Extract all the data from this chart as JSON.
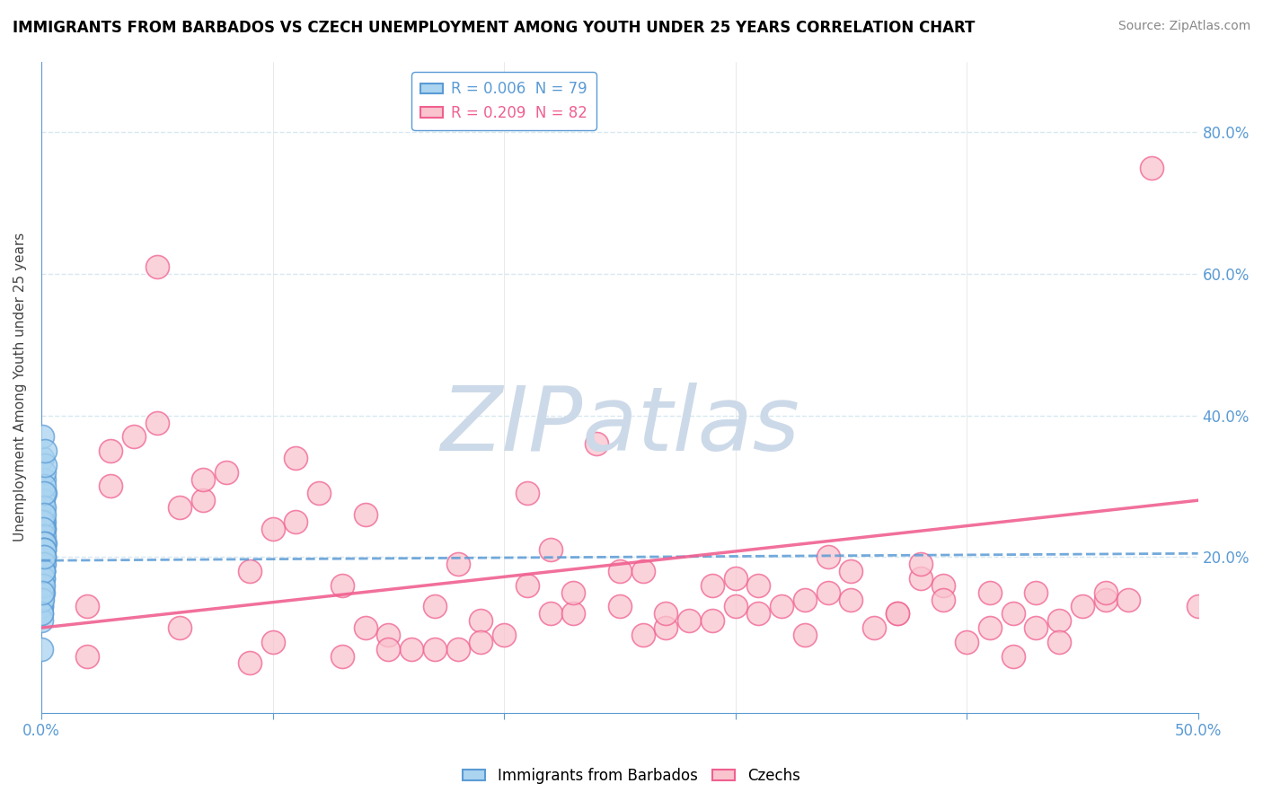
{
  "title": "IMMIGRANTS FROM BARBADOS VS CZECH UNEMPLOYMENT AMONG YOUTH UNDER 25 YEARS CORRELATION CHART",
  "source": "Source: ZipAtlas.com",
  "ylabel": "Unemployment Among Youth under 25 years",
  "xlim": [
    0.0,
    0.5
  ],
  "ylim": [
    -0.02,
    0.9
  ],
  "legend_entries": [
    {
      "label": "R = 0.006  N = 79",
      "R": 0.006,
      "N": 79
    },
    {
      "label": "R = 0.209  N = 82",
      "R": 0.209,
      "N": 82
    }
  ],
  "blue_scatter_x": [
    0.0005,
    0.001,
    0.0008,
    0.0012,
    0.0003,
    0.0015,
    0.001,
    0.0007,
    0.0004,
    0.0009,
    0.0011,
    0.0006,
    0.0013,
    0.0002,
    0.0014,
    0.0008,
    0.001,
    0.0005,
    0.0016,
    0.0007,
    0.0009,
    0.0003,
    0.0011,
    0.0006,
    0.0013,
    0.0004,
    0.0008,
    0.0002,
    0.001,
    0.0007,
    0.0012,
    0.0005,
    0.0009,
    0.0003,
    0.0014,
    0.0011,
    0.0006,
    0.0001,
    0.0008,
    0.0004,
    0.001,
    0.0007,
    0.0002,
    0.0012,
    0.0005,
    0.0001,
    0.0009,
    0.0006,
    0.0003,
    0.0008,
    0.0004,
    0.001,
    0.0007,
    0.0011,
    0.0002,
    0.0006,
    0.0009,
    0.0003,
    0.0008,
    0.001,
    0.0001,
    0.0005,
    0.0011,
    0.0002,
    0.0007,
    0.0004,
    5e-05,
    0.0006,
    0.0009,
    0.0002,
    0.0007,
    3e-05,
    0.0008,
    0.0005,
    0.0002,
    0.0009,
    0.0011,
    0.0004,
    1e-05
  ],
  "blue_scatter_y": [
    0.34,
    0.31,
    0.27,
    0.24,
    0.37,
    0.29,
    0.32,
    0.26,
    0.21,
    0.28,
    0.3,
    0.23,
    0.25,
    0.2,
    0.33,
    0.22,
    0.24,
    0.19,
    0.35,
    0.25,
    0.22,
    0.18,
    0.27,
    0.17,
    0.29,
    0.25,
    0.2,
    0.21,
    0.26,
    0.19,
    0.23,
    0.22,
    0.24,
    0.18,
    0.22,
    0.21,
    0.2,
    0.16,
    0.21,
    0.18,
    0.2,
    0.19,
    0.17,
    0.22,
    0.19,
    0.13,
    0.21,
    0.2,
    0.16,
    0.19,
    0.15,
    0.21,
    0.18,
    0.2,
    0.14,
    0.19,
    0.2,
    0.15,
    0.18,
    0.21,
    0.13,
    0.17,
    0.19,
    0.14,
    0.18,
    0.16,
    0.12,
    0.15,
    0.18,
    0.14,
    0.17,
    0.11,
    0.16,
    0.14,
    0.12,
    0.18,
    0.2,
    0.15,
    0.07
  ],
  "pink_scatter_x": [
    0.02,
    0.06,
    0.1,
    0.14,
    0.18,
    0.22,
    0.26,
    0.3,
    0.34,
    0.38,
    0.42,
    0.46,
    0.05,
    0.09,
    0.13,
    0.17,
    0.21,
    0.25,
    0.29,
    0.33,
    0.37,
    0.41,
    0.45,
    0.03,
    0.07,
    0.11,
    0.15,
    0.19,
    0.23,
    0.27,
    0.31,
    0.35,
    0.39,
    0.43,
    0.04,
    0.08,
    0.12,
    0.16,
    0.2,
    0.24,
    0.28,
    0.32,
    0.36,
    0.4,
    0.44,
    0.02,
    0.06,
    0.1,
    0.14,
    0.18,
    0.22,
    0.26,
    0.3,
    0.34,
    0.38,
    0.42,
    0.46,
    0.03,
    0.07,
    0.11,
    0.15,
    0.19,
    0.23,
    0.27,
    0.31,
    0.35,
    0.39,
    0.43,
    0.05,
    0.09,
    0.13,
    0.17,
    0.21,
    0.25,
    0.29,
    0.33,
    0.37,
    0.41,
    0.48,
    0.5,
    0.44,
    0.47
  ],
  "pink_scatter_y": [
    0.13,
    0.1,
    0.08,
    0.1,
    0.07,
    0.12,
    0.09,
    0.13,
    0.15,
    0.17,
    0.12,
    0.14,
    0.61,
    0.18,
    0.16,
    0.13,
    0.29,
    0.18,
    0.16,
    0.14,
    0.12,
    0.15,
    0.13,
    0.35,
    0.28,
    0.34,
    0.09,
    0.11,
    0.12,
    0.1,
    0.12,
    0.14,
    0.16,
    0.15,
    0.37,
    0.32,
    0.29,
    0.07,
    0.09,
    0.36,
    0.11,
    0.13,
    0.1,
    0.08,
    0.11,
    0.06,
    0.27,
    0.24,
    0.26,
    0.19,
    0.21,
    0.18,
    0.17,
    0.2,
    0.19,
    0.06,
    0.15,
    0.3,
    0.31,
    0.25,
    0.07,
    0.08,
    0.15,
    0.12,
    0.16,
    0.18,
    0.14,
    0.1,
    0.39,
    0.05,
    0.06,
    0.07,
    0.16,
    0.13,
    0.11,
    0.09,
    0.12,
    0.1,
    0.75,
    0.13,
    0.08,
    0.14
  ],
  "blue_color": "#aad4f0",
  "pink_color": "#f9c4ce",
  "blue_edge_color": "#5b9bd5",
  "pink_edge_color": "#f06090",
  "blue_line_color": "#5b9bd5",
  "pink_line_color": "#f06090",
  "watermark_text": "ZIPatlas",
  "watermark_color": "#ccd9e8",
  "grid_color": "#d8e8f0",
  "axis_color": "#5b9bd5",
  "tick_color": "#5b9bd5",
  "blue_trend_start_y": 0.195,
  "blue_trend_end_y": 0.205,
  "pink_trend_start_y": 0.1,
  "pink_trend_end_y": 0.28
}
